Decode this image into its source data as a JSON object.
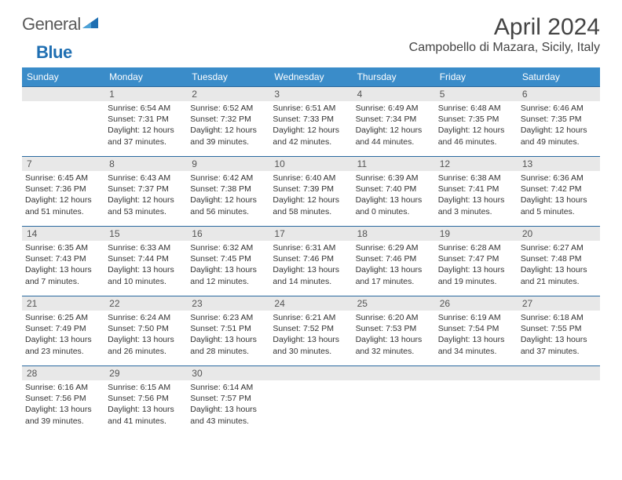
{
  "logo": {
    "text1": "General",
    "text2": "Blue"
  },
  "title": "April 2024",
  "location": "Campobello di Mazara, Sicily, Italy",
  "colors": {
    "header_bar": "#3a8cc9",
    "daynum_bg": "#e8e8e8",
    "week_border": "#2b6aa0",
    "text": "#333333",
    "logo_gray": "#5a5a5a",
    "logo_blue": "#1f6fb2"
  },
  "dow": [
    "Sunday",
    "Monday",
    "Tuesday",
    "Wednesday",
    "Thursday",
    "Friday",
    "Saturday"
  ],
  "weeks": [
    [
      {
        "n": ""
      },
      {
        "n": "1",
        "sr": "6:54 AM",
        "ss": "7:31 PM",
        "dl": "12 hours and 37 minutes."
      },
      {
        "n": "2",
        "sr": "6:52 AM",
        "ss": "7:32 PM",
        "dl": "12 hours and 39 minutes."
      },
      {
        "n": "3",
        "sr": "6:51 AM",
        "ss": "7:33 PM",
        "dl": "12 hours and 42 minutes."
      },
      {
        "n": "4",
        "sr": "6:49 AM",
        "ss": "7:34 PM",
        "dl": "12 hours and 44 minutes."
      },
      {
        "n": "5",
        "sr": "6:48 AM",
        "ss": "7:35 PM",
        "dl": "12 hours and 46 minutes."
      },
      {
        "n": "6",
        "sr": "6:46 AM",
        "ss": "7:35 PM",
        "dl": "12 hours and 49 minutes."
      }
    ],
    [
      {
        "n": "7",
        "sr": "6:45 AM",
        "ss": "7:36 PM",
        "dl": "12 hours and 51 minutes."
      },
      {
        "n": "8",
        "sr": "6:43 AM",
        "ss": "7:37 PM",
        "dl": "12 hours and 53 minutes."
      },
      {
        "n": "9",
        "sr": "6:42 AM",
        "ss": "7:38 PM",
        "dl": "12 hours and 56 minutes."
      },
      {
        "n": "10",
        "sr": "6:40 AM",
        "ss": "7:39 PM",
        "dl": "12 hours and 58 minutes."
      },
      {
        "n": "11",
        "sr": "6:39 AM",
        "ss": "7:40 PM",
        "dl": "13 hours and 0 minutes."
      },
      {
        "n": "12",
        "sr": "6:38 AM",
        "ss": "7:41 PM",
        "dl": "13 hours and 3 minutes."
      },
      {
        "n": "13",
        "sr": "6:36 AM",
        "ss": "7:42 PM",
        "dl": "13 hours and 5 minutes."
      }
    ],
    [
      {
        "n": "14",
        "sr": "6:35 AM",
        "ss": "7:43 PM",
        "dl": "13 hours and 7 minutes."
      },
      {
        "n": "15",
        "sr": "6:33 AM",
        "ss": "7:44 PM",
        "dl": "13 hours and 10 minutes."
      },
      {
        "n": "16",
        "sr": "6:32 AM",
        "ss": "7:45 PM",
        "dl": "13 hours and 12 minutes."
      },
      {
        "n": "17",
        "sr": "6:31 AM",
        "ss": "7:46 PM",
        "dl": "13 hours and 14 minutes."
      },
      {
        "n": "18",
        "sr": "6:29 AM",
        "ss": "7:46 PM",
        "dl": "13 hours and 17 minutes."
      },
      {
        "n": "19",
        "sr": "6:28 AM",
        "ss": "7:47 PM",
        "dl": "13 hours and 19 minutes."
      },
      {
        "n": "20",
        "sr": "6:27 AM",
        "ss": "7:48 PM",
        "dl": "13 hours and 21 minutes."
      }
    ],
    [
      {
        "n": "21",
        "sr": "6:25 AM",
        "ss": "7:49 PM",
        "dl": "13 hours and 23 minutes."
      },
      {
        "n": "22",
        "sr": "6:24 AM",
        "ss": "7:50 PM",
        "dl": "13 hours and 26 minutes."
      },
      {
        "n": "23",
        "sr": "6:23 AM",
        "ss": "7:51 PM",
        "dl": "13 hours and 28 minutes."
      },
      {
        "n": "24",
        "sr": "6:21 AM",
        "ss": "7:52 PM",
        "dl": "13 hours and 30 minutes."
      },
      {
        "n": "25",
        "sr": "6:20 AM",
        "ss": "7:53 PM",
        "dl": "13 hours and 32 minutes."
      },
      {
        "n": "26",
        "sr": "6:19 AM",
        "ss": "7:54 PM",
        "dl": "13 hours and 34 minutes."
      },
      {
        "n": "27",
        "sr": "6:18 AM",
        "ss": "7:55 PM",
        "dl": "13 hours and 37 minutes."
      }
    ],
    [
      {
        "n": "28",
        "sr": "6:16 AM",
        "ss": "7:56 PM",
        "dl": "13 hours and 39 minutes."
      },
      {
        "n": "29",
        "sr": "6:15 AM",
        "ss": "7:56 PM",
        "dl": "13 hours and 41 minutes."
      },
      {
        "n": "30",
        "sr": "6:14 AM",
        "ss": "7:57 PM",
        "dl": "13 hours and 43 minutes."
      },
      {
        "n": ""
      },
      {
        "n": ""
      },
      {
        "n": ""
      },
      {
        "n": ""
      }
    ]
  ],
  "labels": {
    "sunrise": "Sunrise:",
    "sunset": "Sunset:",
    "daylight": "Daylight:"
  }
}
